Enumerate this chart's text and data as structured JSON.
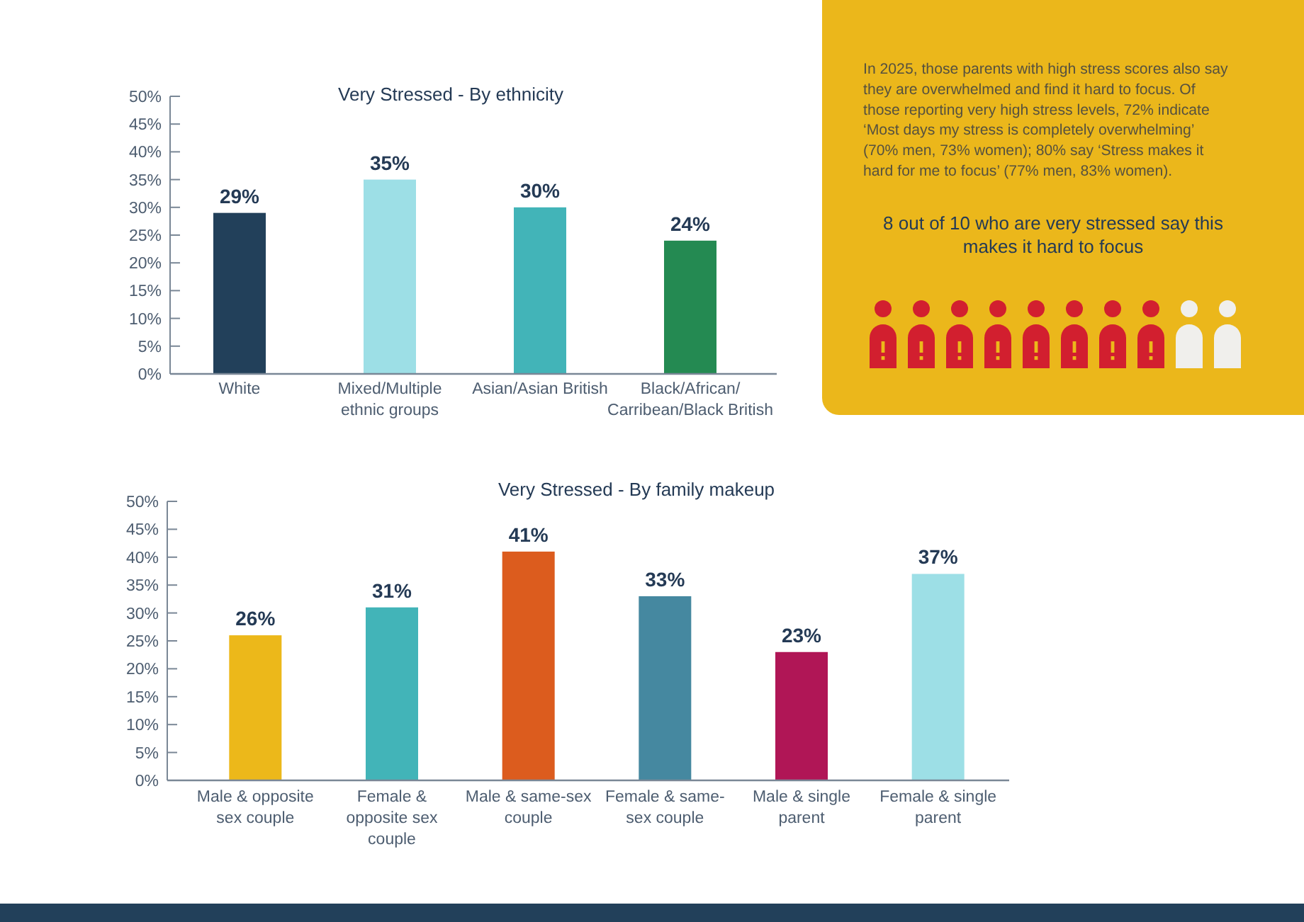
{
  "chart_data": [
    {
      "type": "bar",
      "title": "Very Stressed - By ethnicity",
      "categories": [
        "White",
        "Mixed/Multiple ethnic groups",
        "Asian/Asian British",
        "Black/African/Carribean/Black British"
      ],
      "values": [
        29,
        35,
        30,
        24
      ],
      "colors": [
        "#22405a",
        "#9ddfe6",
        "#42b4b8",
        "#248a52"
      ],
      "ylim": [
        0,
        50
      ],
      "yticks": [
        {
          "value": 0,
          "label": "0%"
        },
        {
          "value": 5,
          "label": "5%"
        },
        {
          "value": 10,
          "label": "10%"
        },
        {
          "value": 15,
          "label": "15%"
        },
        {
          "value": 20,
          "label": "20%"
        },
        {
          "value": 25,
          "label": "25%"
        },
        {
          "value": 30,
          "label": "30%"
        },
        {
          "value": 35,
          "label": "35%"
        },
        {
          "value": 40,
          "label": "40%"
        },
        {
          "value": 45,
          "label": "45%"
        },
        {
          "value": 50,
          "label": "50%"
        }
      ],
      "value_labels": [
        "29%",
        "35%",
        "30%",
        "24%"
      ]
    },
    {
      "type": "other",
      "title": "8 out of 10 who are very stressed say this makes it hard to focus",
      "annotations": [
        "In 2025, those parents with high stress scores also say they are overwhelmed and find it hard to focus. Of those reporting very high stress levels, 72% indicate ‘Most days my stress is completely overwhelming’ (70% men, 73% women); 80% say ‘Stress makes it hard for me to focus’ (77% men, 83% women)."
      ]
    },
    {
      "type": "bar",
      "title": "Very Stressed - By family makeup",
      "categories": [
        "Male & opposite sex couple",
        "Female & opposite sex couple",
        "Male & same-sex couple",
        "Female & same-sex couple",
        "Male & single parent",
        "Female & single parent"
      ],
      "values": [
        26,
        31,
        41,
        33,
        23,
        37
      ],
      "colors": [
        "#ecb81a",
        "#42b4b8",
        "#dc5c1e",
        "#4588a0",
        "#b01656",
        "#9ddfe6"
      ],
      "ylim": [
        0,
        50
      ],
      "yticks": [
        {
          "value": 0,
          "label": "0%"
        },
        {
          "value": 5,
          "label": "5%"
        },
        {
          "value": 10,
          "label": "10%"
        },
        {
          "value": 15,
          "label": "15%"
        },
        {
          "value": 20,
          "label": "20%"
        },
        {
          "value": 25,
          "label": "25%"
        },
        {
          "value": 30,
          "label": "30%"
        },
        {
          "value": 35,
          "label": "35%"
        },
        {
          "value": 40,
          "label": "40%"
        },
        {
          "value": 45,
          "label": "45%"
        },
        {
          "value": 50,
          "label": "50%"
        }
      ],
      "value_labels": [
        "26%",
        "31%",
        "41%",
        "33%",
        "23%",
        "37%"
      ]
    }
  ]
}
